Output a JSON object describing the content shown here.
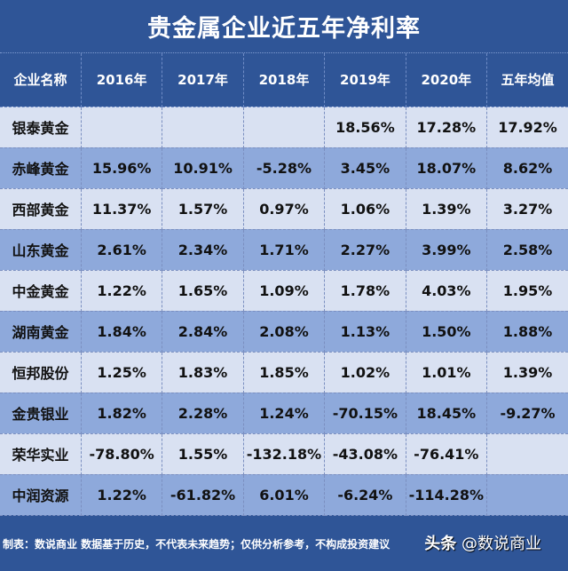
{
  "title": "贵金属企业近五年净利率",
  "headers": [
    "企业名称",
    "2016年",
    "2017年",
    "2018年",
    "2019年",
    "2020年",
    "五年均值"
  ],
  "rows": [
    {
      "name": "银泰黄金",
      "values": [
        "",
        "",
        "",
        "18.56%",
        "17.28%",
        "17.92%"
      ]
    },
    {
      "name": "赤峰黄金",
      "values": [
        "15.96%",
        "10.91%",
        "-5.28%",
        "3.45%",
        "18.07%",
        "8.62%"
      ]
    },
    {
      "name": "西部黄金",
      "values": [
        "11.37%",
        "1.57%",
        "0.97%",
        "1.06%",
        "1.39%",
        "3.27%"
      ]
    },
    {
      "name": "山东黄金",
      "values": [
        "2.61%",
        "2.34%",
        "1.71%",
        "2.27%",
        "3.99%",
        "2.58%"
      ]
    },
    {
      "name": "中金黄金",
      "values": [
        "1.22%",
        "1.65%",
        "1.09%",
        "1.78%",
        "4.03%",
        "1.95%"
      ]
    },
    {
      "name": "湖南黄金",
      "values": [
        "1.84%",
        "2.84%",
        "2.08%",
        "1.13%",
        "1.50%",
        "1.88%"
      ]
    },
    {
      "name": "恒邦股份",
      "values": [
        "1.25%",
        "1.83%",
        "1.85%",
        "1.02%",
        "1.01%",
        "1.39%"
      ]
    },
    {
      "name": "金贵银业",
      "values": [
        "1.82%",
        "2.28%",
        "1.24%",
        "-70.15%",
        "18.45%",
        "-9.27%"
      ]
    },
    {
      "name": "荣华实业",
      "values": [
        "-78.80%",
        "1.55%",
        "-132.18%",
        "-43.08%",
        "-76.41%",
        ""
      ]
    },
    {
      "name": "中润资源",
      "values": [
        "1.22%",
        "-61.82%",
        "6.01%",
        "-6.24%",
        "-114.28%",
        ""
      ]
    }
  ],
  "footer": {
    "note": "制表：数说商业 数据基于历史，不代表未来趋势；仅供分析参考，不构成投资建议",
    "watermark_brand": "头条",
    "watermark_handle": "@数说商业"
  },
  "colors": {
    "background": "#2f5597",
    "row_light": "#d9e1f2",
    "row_dark": "#8ea9db",
    "header_text": "#ffffff"
  },
  "chart_data": {
    "type": "table",
    "title": "贵金属企业近五年净利率",
    "columns": [
      "企业名称",
      "2016年",
      "2017年",
      "2018年",
      "2019年",
      "2020年",
      "五年均值"
    ],
    "rows": [
      [
        "银泰黄金",
        null,
        null,
        null,
        18.56,
        17.28,
        17.92
      ],
      [
        "赤峰黄金",
        15.96,
        10.91,
        -5.28,
        3.45,
        18.07,
        8.62
      ],
      [
        "西部黄金",
        11.37,
        1.57,
        0.97,
        1.06,
        1.39,
        3.27
      ],
      [
        "山东黄金",
        2.61,
        2.34,
        1.71,
        2.27,
        3.99,
        2.58
      ],
      [
        "中金黄金",
        1.22,
        1.65,
        1.09,
        1.78,
        4.03,
        1.95
      ],
      [
        "湖南黄金",
        1.84,
        2.84,
        2.08,
        1.13,
        1.5,
        1.88
      ],
      [
        "恒邦股份",
        1.25,
        1.83,
        1.85,
        1.02,
        1.01,
        1.39
      ],
      [
        "金贵银业",
        1.82,
        2.28,
        1.24,
        -70.15,
        18.45,
        -9.27
      ],
      [
        "荣华实业",
        -78.8,
        1.55,
        -132.18,
        -43.08,
        -76.41,
        null
      ],
      [
        "中润资源",
        1.22,
        -61.82,
        6.01,
        -6.24,
        -114.28,
        null
      ]
    ],
    "unit": "%"
  }
}
